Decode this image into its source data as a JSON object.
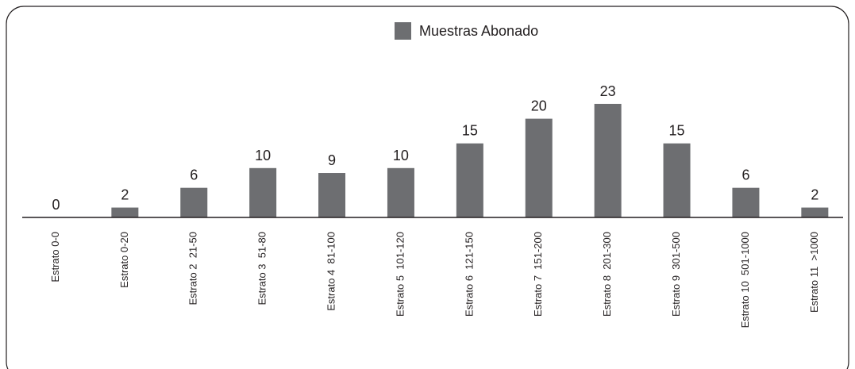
{
  "chart_data": {
    "type": "bar",
    "categories": [
      "Estrato 0-0",
      "Estrato 0-20",
      "Estrato 2  21-50",
      "Estrato 3  51-80",
      "Estrato 4  81-100",
      "Estrato 5  101-120",
      "Estrato 6  121-150",
      "Estrato 7  151-200",
      "Estrato 8  201-300",
      "Estrato 9  301-500",
      "Estrato 10  501-1000",
      "Estrato 11  >1000"
    ],
    "series": [
      {
        "name": "Muestras Abonado",
        "color": "#6d6e71",
        "values": [
          0,
          2,
          6,
          10,
          9,
          10,
          15,
          20,
          23,
          15,
          6,
          2
        ]
      }
    ],
    "ylim": [
      0,
      25
    ],
    "legend": "top"
  }
}
